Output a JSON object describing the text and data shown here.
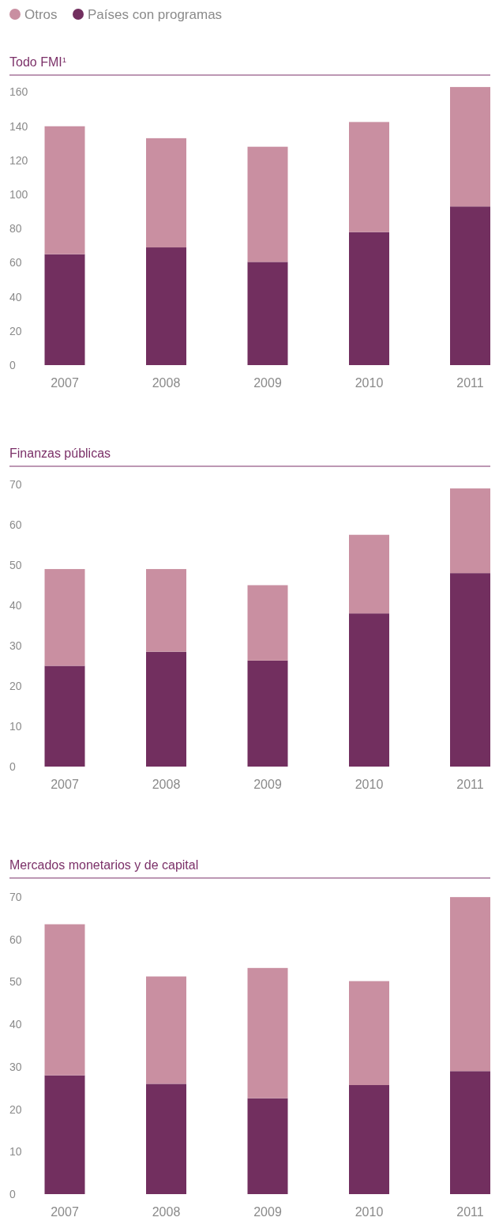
{
  "chart_data": [
    {
      "type": "bar",
      "title": "Todo FMI$^{1}$",
      "categories": [
        "2007",
        "2008",
        "2009",
        "2010",
        "2011"
      ],
      "stacked": true,
      "legend": "top left",
      "ylim": [
        0,
        170
      ],
      "yticks": [
        0,
        20,
        40,
        60,
        80,
        100,
        120,
        140,
        160
      ],
      "series": [
        {
          "name": "Países con programas",
          "color": "#722f5f",
          "values": [
            65,
            69,
            60.5,
            78,
            93
          ]
        },
        {
          "name": "Otros",
          "color": "#c98fa1",
          "values": [
            75,
            64,
            67.5,
            64.5,
            70
          ]
        }
      ]
    },
    {
      "type": "bar",
      "title": "Finanzas públicas",
      "categories": [
        "2007",
        "2008",
        "2009",
        "2010",
        "2011"
      ],
      "stacked": true,
      "ylim": [
        0,
        74.5
      ],
      "yticks": [
        0,
        10,
        20,
        30,
        40,
        50,
        60,
        70
      ],
      "series": [
        {
          "color": "#722f5f",
          "values": [
            25,
            28.5,
            26.3,
            38,
            48
          ]
        },
        {
          "color": "#c98fa1",
          "values": [
            24,
            20.5,
            18.7,
            19.5,
            21
          ]
        }
      ]
    },
    {
      "type": "bar",
      "title": "Mercados monetarios y de capital",
      "categories": [
        "2007",
        "2008",
        "2009",
        "2010",
        "2011"
      ],
      "stacked": true,
      "ylim": [
        0,
        74.5
      ],
      "yticks": [
        0,
        10,
        20,
        30,
        40,
        50,
        60,
        70
      ],
      "series": [
        {
          "color": "#722f5f",
          "values": [
            28,
            26,
            22.6,
            25.7,
            29
          ]
        },
        {
          "color": "#c98fa1",
          "values": [
            35.6,
            25.3,
            30.7,
            24.5,
            41
          ]
        }
      ]
    }
  ]
}
